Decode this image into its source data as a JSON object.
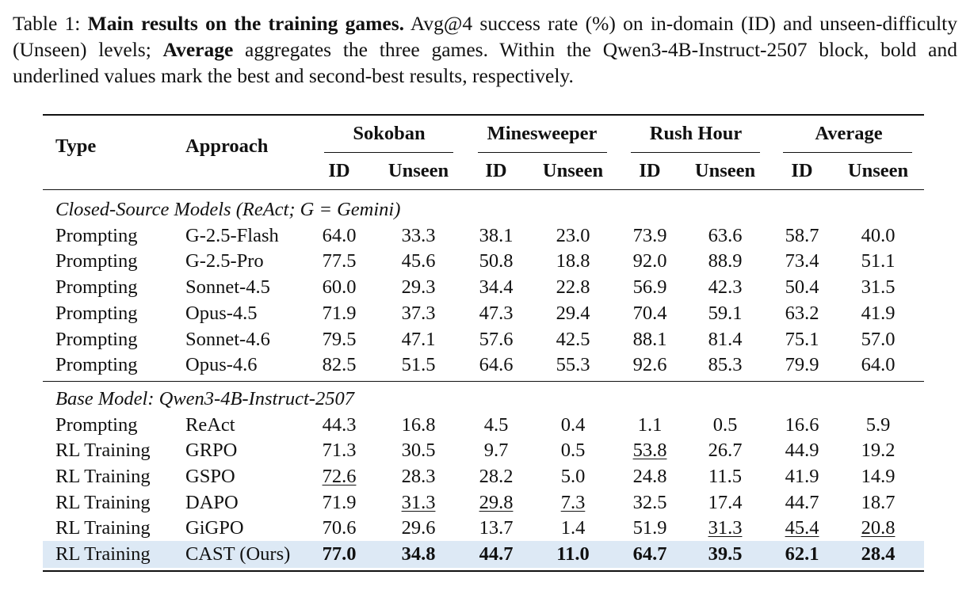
{
  "caption": {
    "prefix": "Table 1: ",
    "bold_title": "Main results on the training games.",
    "text1": " Avg@4 success rate (%) on in-domain (ID) and unseen-difficulty (Unseen) levels; ",
    "bold_average": "Average",
    "text2": " aggregates the three games. Within the Qwen3-4B-Instruct-2507 block, bold and underlined values mark the best and second-best results, respectively."
  },
  "header": {
    "type": "Type",
    "approach": "Approach",
    "groups": [
      "Sokoban",
      "Minesweeper",
      "Rush Hour",
      "Average"
    ],
    "sub": [
      "ID",
      "Unseen"
    ]
  },
  "sections": [
    {
      "title": "Closed-Source Models (ReAct; G = Gemini)",
      "rows": [
        {
          "type": "Prompting",
          "approach": "G-2.5-Flash",
          "values": [
            "64.0",
            "33.3",
            "38.1",
            "23.0",
            "73.9",
            "63.6",
            "58.7",
            "40.0"
          ],
          "style": [
            "",
            "",
            "",
            "",
            "",
            "",
            "",
            ""
          ]
        },
        {
          "type": "Prompting",
          "approach": "G-2.5-Pro",
          "values": [
            "77.5",
            "45.6",
            "50.8",
            "18.8",
            "92.0",
            "88.9",
            "73.4",
            "51.1"
          ],
          "style": [
            "",
            "",
            "",
            "",
            "",
            "",
            "",
            ""
          ]
        },
        {
          "type": "Prompting",
          "approach": "Sonnet-4.5",
          "values": [
            "60.0",
            "29.3",
            "34.4",
            "22.8",
            "56.9",
            "42.3",
            "50.4",
            "31.5"
          ],
          "style": [
            "",
            "",
            "",
            "",
            "",
            "",
            "",
            ""
          ]
        },
        {
          "type": "Prompting",
          "approach": "Opus-4.5",
          "values": [
            "71.9",
            "37.3",
            "47.3",
            "29.4",
            "70.4",
            "59.1",
            "63.2",
            "41.9"
          ],
          "style": [
            "",
            "",
            "",
            "",
            "",
            "",
            "",
            ""
          ]
        },
        {
          "type": "Prompting",
          "approach": "Sonnet-4.6",
          "values": [
            "79.5",
            "47.1",
            "57.6",
            "42.5",
            "88.1",
            "81.4",
            "75.1",
            "57.0"
          ],
          "style": [
            "",
            "",
            "",
            "",
            "",
            "",
            "",
            ""
          ]
        },
        {
          "type": "Prompting",
          "approach": "Opus-4.6",
          "values": [
            "82.5",
            "51.5",
            "64.6",
            "55.3",
            "92.6",
            "85.3",
            "79.9",
            "64.0"
          ],
          "style": [
            "",
            "",
            "",
            "",
            "",
            "",
            "",
            ""
          ]
        }
      ]
    },
    {
      "title": "Base Model: Qwen3-4B-Instruct-2507",
      "rows": [
        {
          "type": "Prompting",
          "approach": "ReAct",
          "values": [
            "44.3",
            "16.8",
            "4.5",
            "0.4",
            "1.1",
            "0.5",
            "16.6",
            "5.9"
          ],
          "style": [
            "",
            "",
            "",
            "",
            "",
            "",
            "",
            ""
          ]
        },
        {
          "type": "RL Training",
          "approach": "GRPO",
          "values": [
            "71.3",
            "30.5",
            "9.7",
            "0.5",
            "53.8",
            "26.7",
            "44.9",
            "19.2"
          ],
          "style": [
            "",
            "",
            "",
            "",
            "u",
            "",
            "",
            ""
          ]
        },
        {
          "type": "RL Training",
          "approach": "GSPO",
          "values": [
            "72.6",
            "28.3",
            "28.2",
            "5.0",
            "24.8",
            "11.5",
            "41.9",
            "14.9"
          ],
          "style": [
            "u",
            "",
            "",
            "",
            "",
            "",
            "",
            ""
          ]
        },
        {
          "type": "RL Training",
          "approach": "DAPO",
          "values": [
            "71.9",
            "31.3",
            "29.8",
            "7.3",
            "32.5",
            "17.4",
            "44.7",
            "18.7"
          ],
          "style": [
            "",
            "u",
            "u",
            "u",
            "",
            "",
            "",
            ""
          ]
        },
        {
          "type": "RL Training",
          "approach": "GiGPO",
          "values": [
            "70.6",
            "29.6",
            "13.7",
            "1.4",
            "51.9",
            "31.3",
            "45.4",
            "20.8"
          ],
          "style": [
            "",
            "",
            "",
            "",
            "",
            "u",
            "u",
            "u"
          ]
        },
        {
          "type": "RL Training",
          "approach": "CAST (Ours)",
          "values": [
            "77.0",
            "34.8",
            "44.7",
            "11.0",
            "64.7",
            "39.5",
            "62.1",
            "28.4"
          ],
          "style": [
            "b",
            "b",
            "b",
            "b",
            "b",
            "b",
            "b",
            "b"
          ],
          "highlight": true
        }
      ]
    }
  ]
}
